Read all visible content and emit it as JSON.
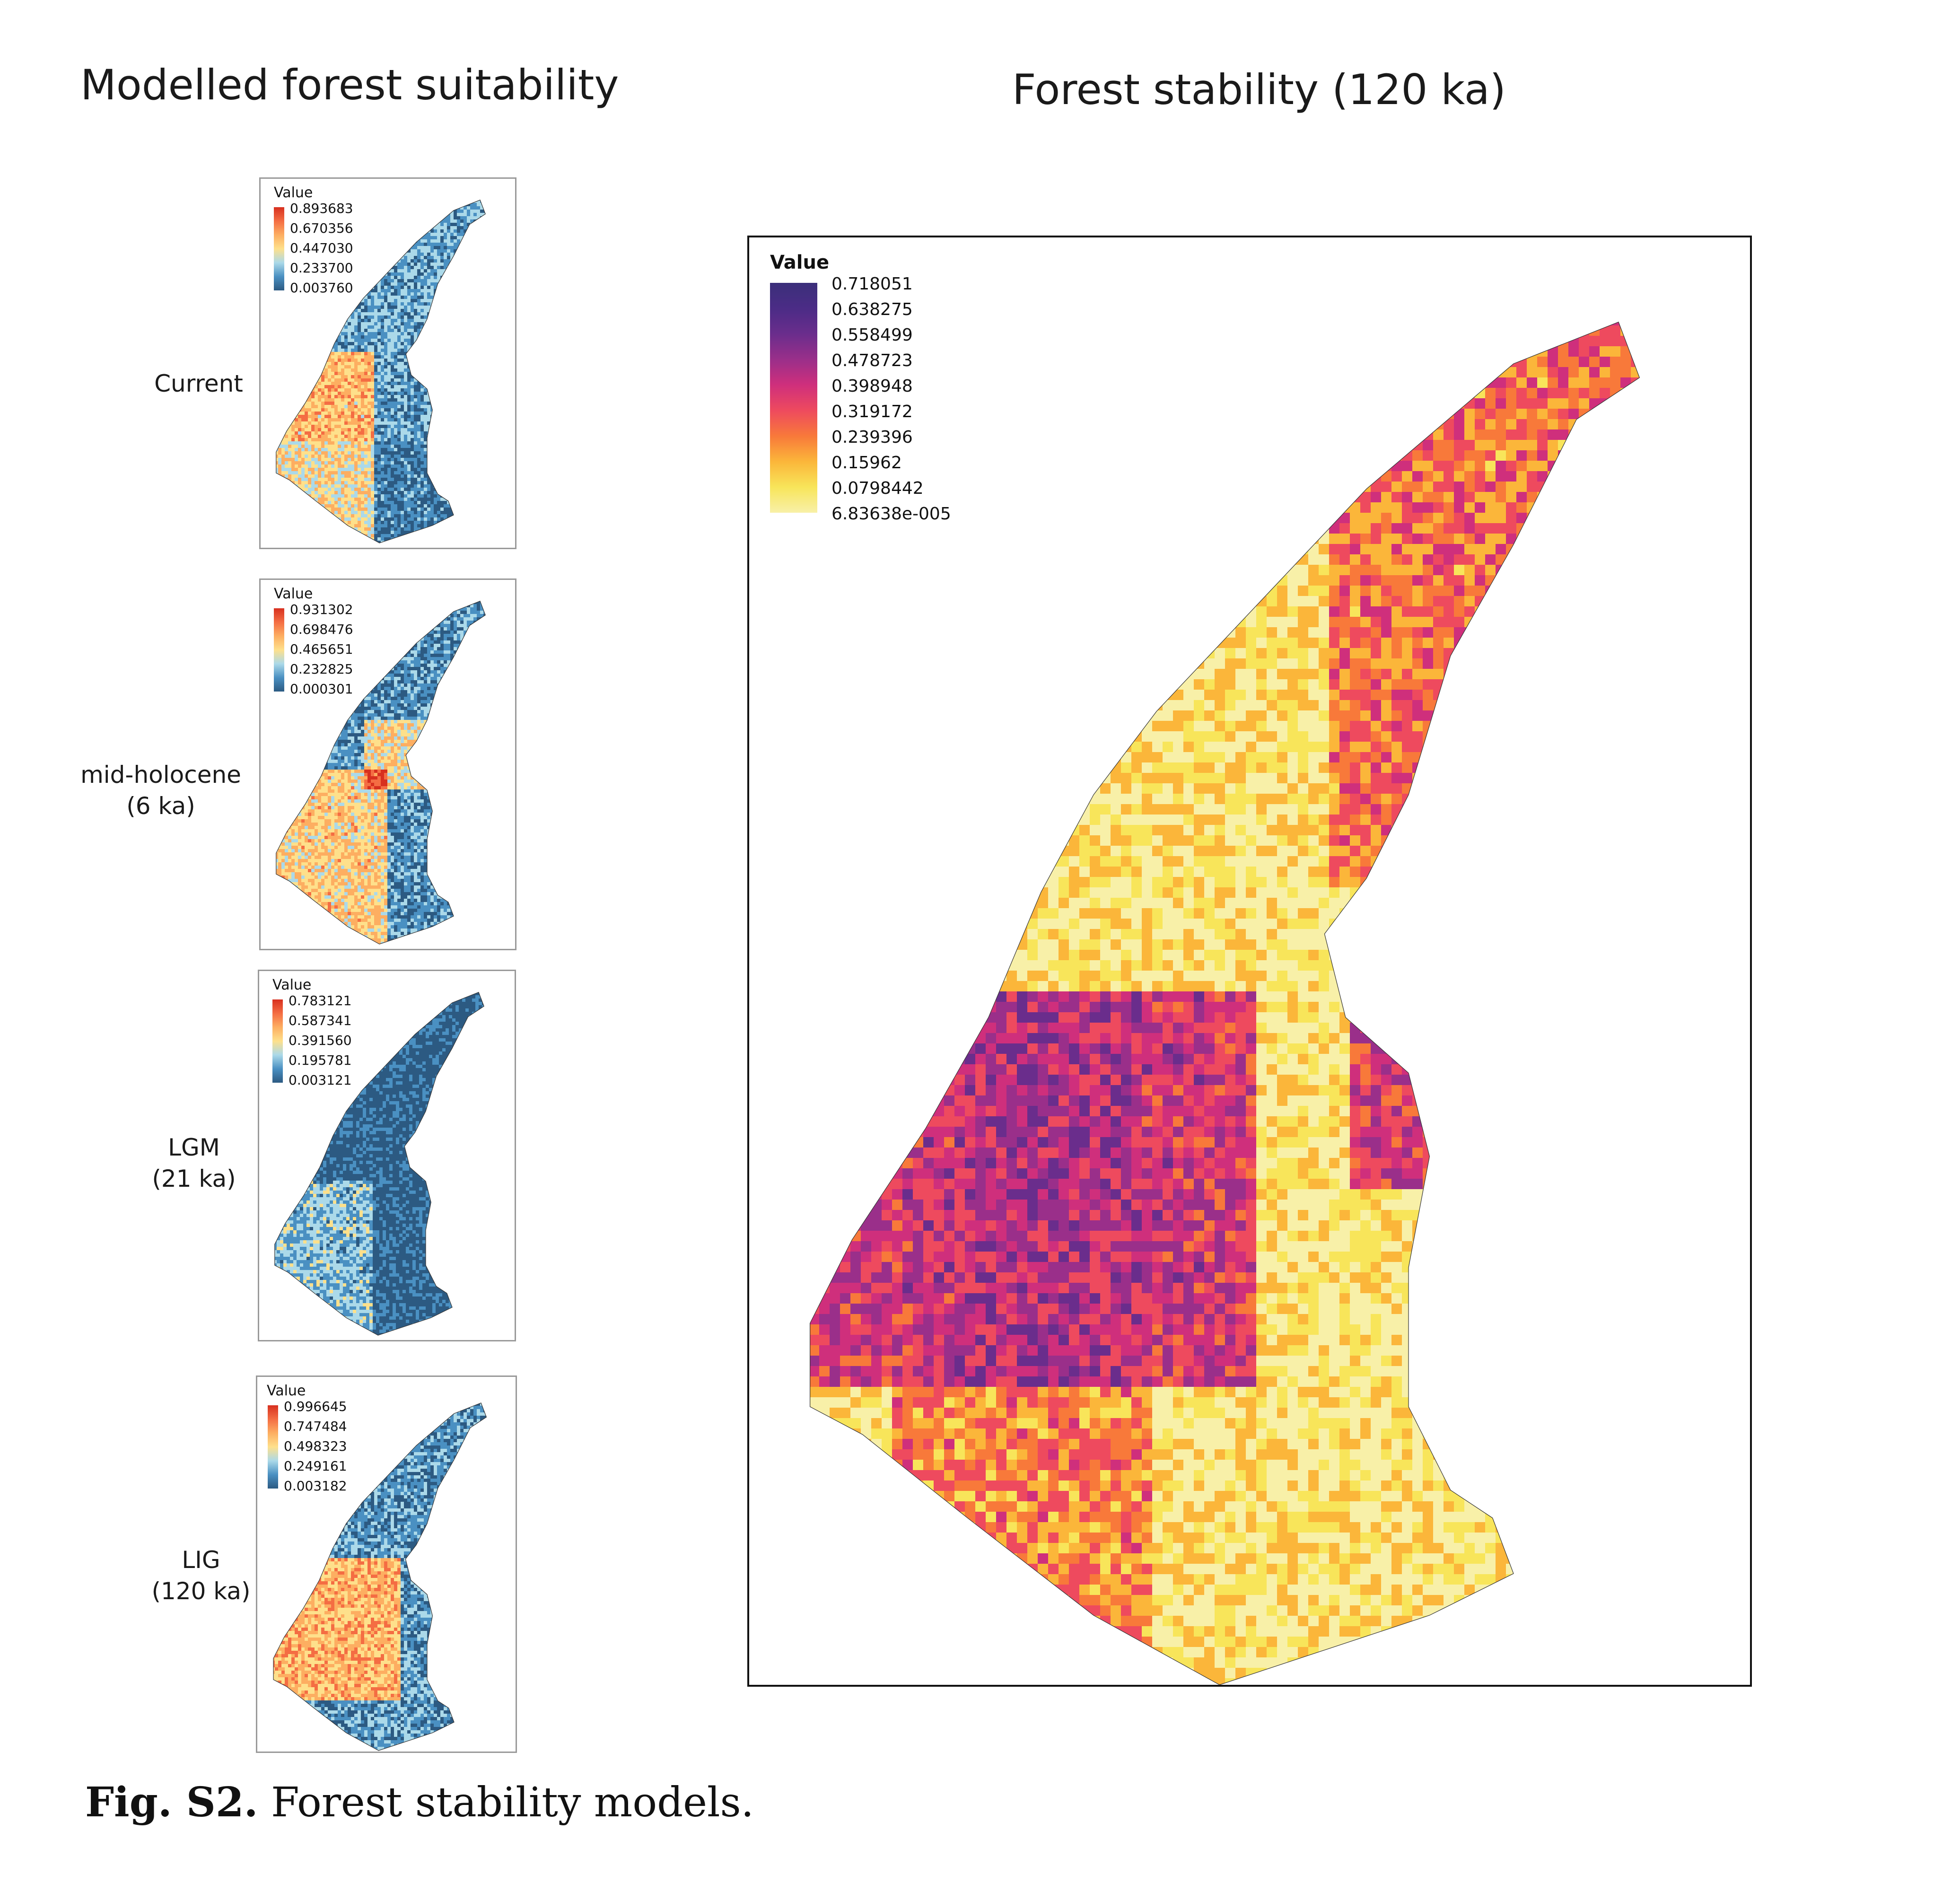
{
  "headings": {
    "left": "Modelled forest suitability",
    "right": "Forest stability (120 ka)"
  },
  "panels": [
    {
      "label_lines": [
        "Current"
      ],
      "legend_title": "Value",
      "ticks": [
        "0.893683",
        "0.670356",
        "0.447030",
        "0.233700",
        "0.003760"
      ],
      "palette": [
        "#d7301f",
        "#f46d43",
        "#fdae61",
        "#fee08b",
        "#abd9e9",
        "#4a90c2",
        "#2c5a82"
      ]
    },
    {
      "label_lines": [
        "mid-holocene",
        "(6 ka)"
      ],
      "legend_title": "Value",
      "ticks": [
        "0.931302",
        "0.698476",
        "0.465651",
        "0.232825",
        "0.000301"
      ],
      "palette": [
        "#d7301f",
        "#f46d43",
        "#fdae61",
        "#fee08b",
        "#abd9e9",
        "#4a90c2",
        "#2c5a82"
      ]
    },
    {
      "label_lines": [
        "LGM",
        "(21 ka)"
      ],
      "legend_title": "Value",
      "ticks": [
        "0.783121",
        "0.587341",
        "0.391560",
        "0.195781",
        "0.003121"
      ],
      "palette": [
        "#d7301f",
        "#f46d43",
        "#fdae61",
        "#fee08b",
        "#abd9e9",
        "#4a90c2",
        "#2c5a82"
      ]
    },
    {
      "label_lines": [
        "LIG",
        "(120 ka)"
      ],
      "legend_title": "Value",
      "ticks": [
        "0.996645",
        "0.747484",
        "0.498323",
        "0.249161",
        "0.003182"
      ],
      "palette": [
        "#d7301f",
        "#f46d43",
        "#fdae61",
        "#fee08b",
        "#abd9e9",
        "#4a90c2",
        "#2c5a82"
      ]
    }
  ],
  "stability": {
    "legend_title": "Value",
    "ticks": [
      "0.718051",
      "0.638275",
      "0.558499",
      "0.478723",
      "0.398948",
      "0.319172",
      "0.239396",
      "0.15962",
      "0.0798442",
      "6.83638e-005"
    ],
    "palette": [
      "#3b2f7a",
      "#4b2c86",
      "#6a2d8c",
      "#9a2f8a",
      "#cf2f7c",
      "#ee4a5e",
      "#f8793a",
      "#fbb63a",
      "#f8e55a",
      "#f8f0a8"
    ]
  },
  "caption": {
    "label": "Fig. S2.",
    "text": " Forest stability models."
  }
}
